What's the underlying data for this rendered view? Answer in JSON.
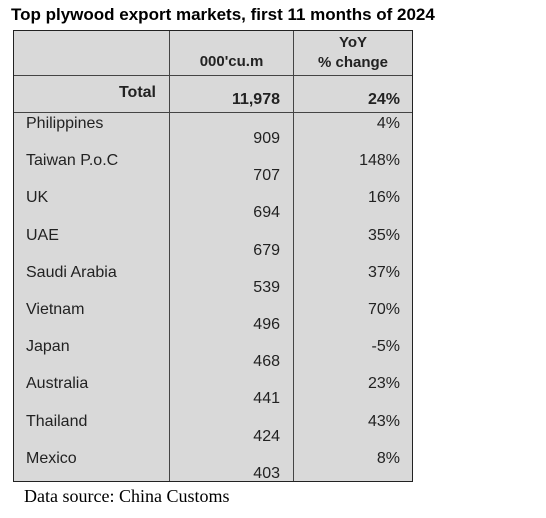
{
  "title": "Top plywood export markets, first 11 months of 2024",
  "table": {
    "header": {
      "volume": "000'cu.m",
      "yoy_line1": "YoY",
      "yoy_line2": "% change"
    },
    "total": {
      "label": "Total",
      "volume": "11,978",
      "yoy": "24%"
    },
    "rows": [
      {
        "country": "Philippines",
        "volume": "909",
        "yoy": "4%"
      },
      {
        "country": "Taiwan P.o.C",
        "volume": "707",
        "yoy": "148%"
      },
      {
        "country": "UK",
        "volume": "694",
        "yoy": "16%"
      },
      {
        "country": "UAE",
        "volume": "679",
        "yoy": "35%"
      },
      {
        "country": "Saudi Arabia",
        "volume": "539",
        "yoy": "37%"
      },
      {
        "country": "Vietnam",
        "volume": "496",
        "yoy": "70%"
      },
      {
        "country": "Japan",
        "volume": "468",
        "yoy": "-5%"
      },
      {
        "country": "Australia",
        "volume": "441",
        "yoy": "23%"
      },
      {
        "country": "Thailand",
        "volume": "424",
        "yoy": "43%"
      },
      {
        "country": "Mexico",
        "volume": "403",
        "yoy": "8%"
      }
    ]
  },
  "source": "Data source: China Customs"
}
